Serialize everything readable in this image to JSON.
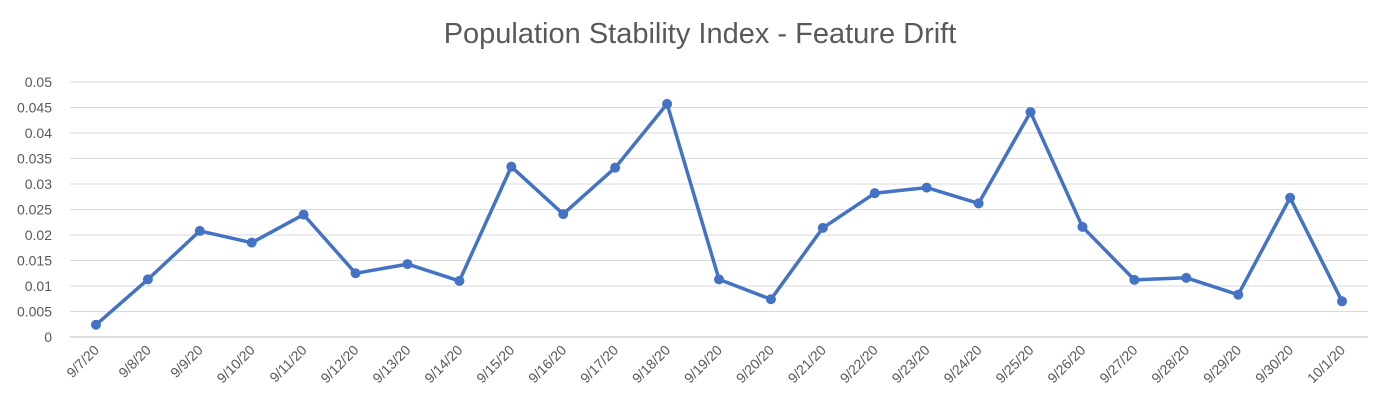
{
  "chart_data": {
    "type": "line",
    "title": "Population Stability Index - Feature Drift",
    "xlabel": "",
    "ylabel": "",
    "ylim": [
      0,
      0.05
    ],
    "yticks": [
      0,
      0.005,
      0.01,
      0.015,
      0.02,
      0.025,
      0.03,
      0.035,
      0.04,
      0.045,
      0.05
    ],
    "ytick_labels": [
      "0",
      "0.005",
      "0.01",
      "0.015",
      "0.02",
      "0.025",
      "0.03",
      "0.035",
      "0.04",
      "0.045",
      "0.05"
    ],
    "grid": true,
    "legend": "none",
    "categories": [
      "9/7/20",
      "9/8/20",
      "9/9/20",
      "9/10/20",
      "9/11/20",
      "9/12/20",
      "9/13/20",
      "9/14/20",
      "9/15/20",
      "9/16/20",
      "9/17/20",
      "9/18/20",
      "9/19/20",
      "9/20/20",
      "9/21/20",
      "9/22/20",
      "9/23/20",
      "9/24/20",
      "9/25/20",
      "9/26/20",
      "9/27/20",
      "9/28/20",
      "9/29/20",
      "9/30/20",
      "10/1/20"
    ],
    "series": [
      {
        "values": [
          0.0024,
          0.0113,
          0.0208,
          0.0185,
          0.024,
          0.0125,
          0.0143,
          0.011,
          0.0334,
          0.0241,
          0.0332,
          0.0457,
          0.0113,
          0.0074,
          0.0214,
          0.0282,
          0.0293,
          0.0262,
          0.0441,
          0.0216,
          0.0112,
          0.0116,
          0.0083,
          0.0273,
          0.007
        ],
        "color": "#4472C4"
      }
    ]
  }
}
